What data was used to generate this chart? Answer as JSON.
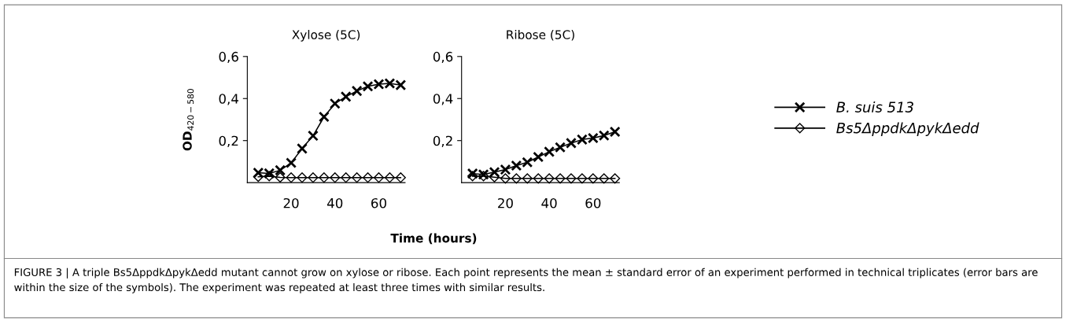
{
  "chart_data": [
    {
      "type": "line",
      "title": "Xylose (5C)",
      "ylabel": "OD$_{420−580}$",
      "xlabel": "Time (hours)",
      "annotations": [
        "FIGURE 3 | A triple Bs5ΔppdkΔpykΔedd mutant cannot grow on xylose or ribose. Each point represents the mean ± standard error of an experiment performed in technical triplicates (error bars are within the size of the symbols). The experiment was repeated at least three times with similar results."
      ],
      "x": [
        5,
        10,
        15,
        20,
        25,
        30,
        35,
        40,
        45,
        50,
        55,
        60,
        65,
        70
      ],
      "series": [
        {
          "color": "#000000",
          "marker": "cross",
          "values": [
            0.047,
            0.044,
            0.059,
            0.094,
            0.162,
            0.223,
            0.313,
            0.376,
            0.409,
            0.436,
            0.458,
            0.468,
            0.472,
            0.464
          ]
        },
        {
          "color": "#000000",
          "marker": "diamond",
          "values": [
            0.028,
            0.031,
            0.025,
            0.024,
            0.024,
            0.024,
            0.024,
            0.024,
            0.024,
            0.024,
            0.024,
            0.024,
            0.024,
            0.024
          ]
        }
      ],
      "xlim": [
        0,
        72
      ],
      "xticks": [
        20,
        40,
        60
      ],
      "ylim": [
        0,
        0.6
      ],
      "yticks": [
        {
          "value": 0.2,
          "label": "0,2"
        },
        {
          "value": 0.4,
          "label": "0,4"
        },
        {
          "value": 0.6,
          "label": "0,6"
        }
      ],
      "line_style": "solid",
      "grid": false,
      "legend": false
    },
    {
      "type": "line",
      "title": "Ribose (5C)",
      "x": [
        5,
        10,
        15,
        20,
        25,
        30,
        35,
        40,
        45,
        50,
        55,
        60,
        65,
        70
      ],
      "series": [
        {
          "name": "B. suis 513",
          "color": "#000000",
          "marker": "cross",
          "values": [
            0.043,
            0.039,
            0.05,
            0.062,
            0.081,
            0.097,
            0.122,
            0.147,
            0.168,
            0.188,
            0.205,
            0.212,
            0.224,
            0.242
          ]
        },
        {
          "name": "Bs5ΔppdkΔpykΔedd",
          "color": "#000000",
          "marker": "diamond",
          "values": [
            0.031,
            0.031,
            0.026,
            0.02,
            0.02,
            0.02,
            0.02,
            0.02,
            0.02,
            0.02,
            0.02,
            0.02,
            0.02,
            0.02
          ]
        }
      ],
      "xlim": [
        0,
        72
      ],
      "xticks": [
        20,
        40,
        60
      ],
      "ylim": [
        0,
        0.6
      ],
      "yticks": [
        {
          "value": 0.2,
          "label": "0,2"
        },
        {
          "value": 0.4,
          "label": "0,4"
        },
        {
          "value": 0.6,
          "label": "0,6"
        }
      ],
      "line_style": "solid",
      "grid": false,
      "legend": "right"
    }
  ]
}
